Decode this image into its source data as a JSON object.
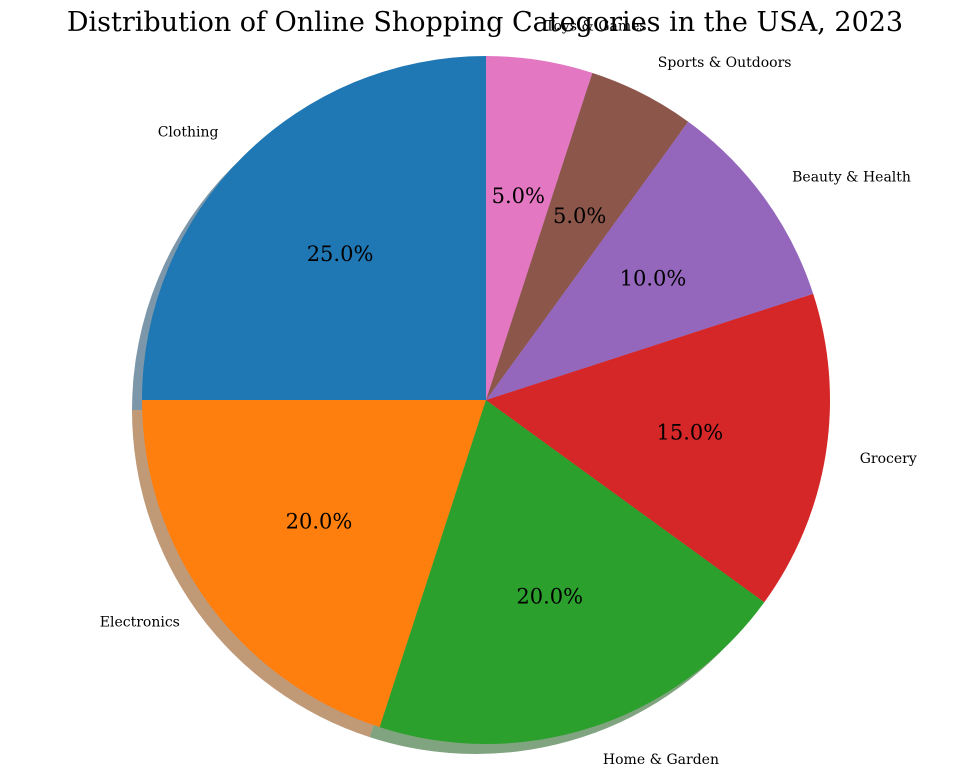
{
  "chart_data": {
    "type": "pie",
    "title": "Distribution of Online Shopping Categories in the USA, 2023",
    "start_angle_deg": 90,
    "direction": "counterclockwise",
    "shadow": true,
    "slices": [
      {
        "label": "Clothing",
        "value": 25.0,
        "pct_label": "25.0%",
        "color": "#1f77b4"
      },
      {
        "label": "Electronics",
        "value": 20.0,
        "pct_label": "20.0%",
        "color": "#ff7f0e"
      },
      {
        "label": "Home & Garden",
        "value": 20.0,
        "pct_label": "20.0%",
        "color": "#2ca02c"
      },
      {
        "label": "Grocery",
        "value": 15.0,
        "pct_label": "15.0%",
        "color": "#d62728"
      },
      {
        "label": "Beauty & Health",
        "value": 10.0,
        "pct_label": "10.0%",
        "color": "#9467bd"
      },
      {
        "label": "Sports & Outdoors",
        "value": 5.0,
        "pct_label": "5.0%",
        "color": "#8c564b"
      },
      {
        "label": "Toys & Games",
        "value": 5.0,
        "pct_label": "5.0%",
        "color": "#e377c2"
      }
    ]
  }
}
